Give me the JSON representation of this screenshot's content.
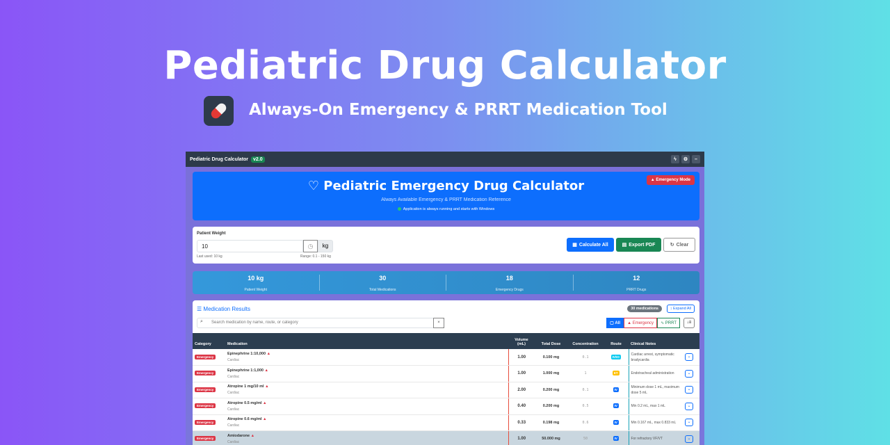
{
  "hero": {
    "title": "Pediatric Drug Calculator",
    "subtitle": "Always-On Emergency & PRRT Medication Tool",
    "icon": "pill-icon"
  },
  "window": {
    "title": "Pediatric Drug Calculator",
    "version": "v2.0"
  },
  "header": {
    "title": "Pediatric Emergency Drug Calculator",
    "subtitle": "Always Available Emergency & PRRT Medication Reference",
    "status": "Application is always running and starts with Windows",
    "emergency_mode": "Emergency Mode"
  },
  "weight": {
    "label": "Patient Weight",
    "value": "10",
    "unit": "kg",
    "last_used": "Last used: 10 kg",
    "range": "Range: 0.1 - 150 kg",
    "calculate": "Calculate All",
    "export": "Export PDF",
    "clear": "Clear"
  },
  "stats": [
    {
      "value": "10 kg",
      "label": "Patient Weight"
    },
    {
      "value": "30",
      "label": "Total Medications"
    },
    {
      "value": "18",
      "label": "Emergency Drugs"
    },
    {
      "value": "12",
      "label": "PRRT Drugs"
    }
  ],
  "results": {
    "title": "Medication Results",
    "count": "30 medications",
    "expand_all": "Expand All",
    "search_placeholder": "Search medication by name, route, or category",
    "clear": "×",
    "filters": {
      "all": "All",
      "emergency": "Emergency",
      "prrt": "PRRT"
    }
  },
  "table": {
    "headers": [
      "Category",
      "Medication",
      "Volume (mL)",
      "Total Dose",
      "Concentration",
      "Route",
      "Clinical Notes"
    ],
    "rows": [
      {
        "category": "Emergency",
        "name": "Epinephrine 1:10,000",
        "group": "Cardiac",
        "volume": "1.00",
        "dose": "0.100 mg",
        "conc": "0.1",
        "route": "IV/IO",
        "route_color": "#0dcaf0",
        "notes": "Cardiac arrest, symptomatic bradycardia"
      },
      {
        "category": "Emergency",
        "name": "Epinephrine 1:1,000",
        "group": "Cardiac",
        "volume": "1.00",
        "dose": "1.000 mg",
        "conc": "1",
        "route": "ET",
        "route_color": "#ffc107",
        "notes": "Endotracheal administration"
      },
      {
        "category": "Emergency",
        "name": "Atropine 1 mg/10 ml",
        "group": "Cardiac",
        "volume": "2.00",
        "dose": "0.200 mg",
        "conc": "0.1",
        "route": "IV",
        "route_color": "#0d6efd",
        "notes": "Minimum dose 1 mL, maximum dose 5 mL"
      },
      {
        "category": "Emergency",
        "name": "Atropine 0.5 mg/ml",
        "group": "Cardiac",
        "volume": "0.40",
        "dose": "0.200 mg",
        "conc": "0.5",
        "route": "IV",
        "route_color": "#0d6efd",
        "notes": "Min 0.2 mL, max 1 mL"
      },
      {
        "category": "Emergency",
        "name": "Atropine 0.6 mg/ml",
        "group": "Cardiac",
        "volume": "0.33",
        "dose": "0.198 mg",
        "conc": "0.6",
        "route": "IV",
        "route_color": "#0d6efd",
        "notes": "Min 0.167 mL, max 0.833 mL"
      },
      {
        "category": "Emergency",
        "name": "Amiodarone",
        "group": "Cardiac",
        "volume": "1.00",
        "dose": "50.000 mg",
        "conc": "50",
        "route": "IV",
        "route_color": "#0d6efd",
        "notes": "For refractory VF/VT"
      }
    ]
  }
}
